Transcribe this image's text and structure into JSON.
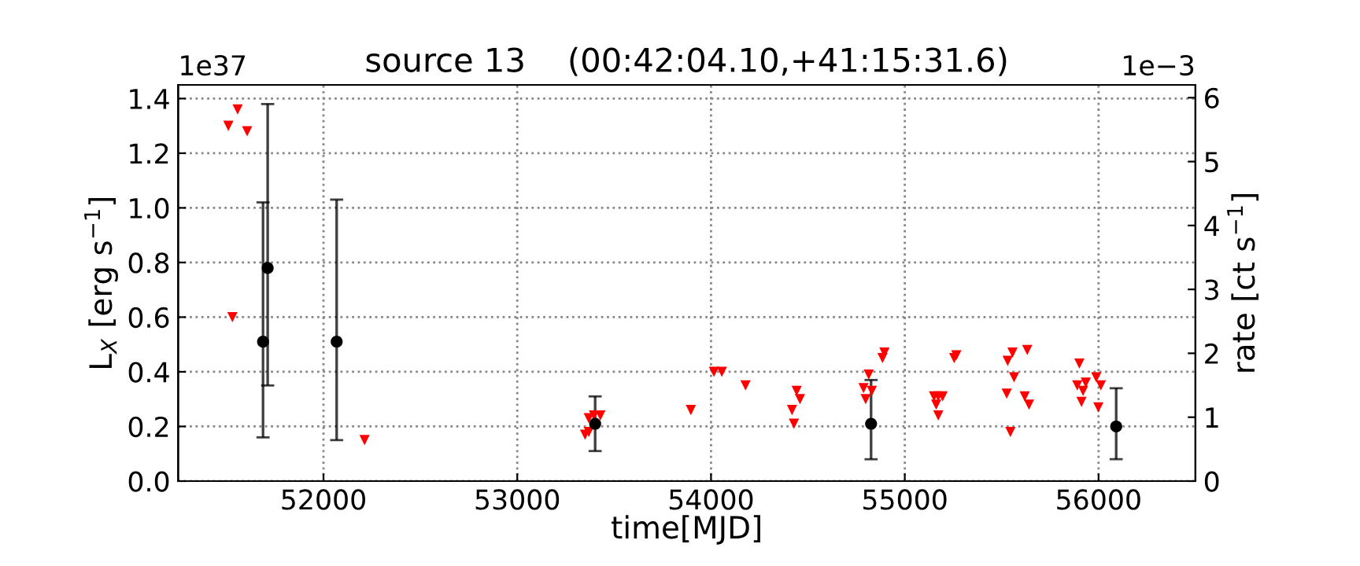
{
  "chart_data": {
    "type": "scatter",
    "title": "source 13    (00:42:04.10,+41:15:31.6)",
    "xlabel": "time[MJD]",
    "ylabel": "L$_{X}$ [erg s$^{−1}$]",
    "y2label": "rate [ct s$^{−1}$]",
    "annotations": [
      "1e37",
      "1e−3"
    ],
    "series": [
      {
        "color": "#ff0000",
        "marker": "triangle",
        "x": [
          51557,
          51509,
          51606,
          51530,
          52212,
          53350,
          53369,
          53369,
          53396,
          53429,
          53896,
          54015,
          54056,
          54178,
          54418,
          54428,
          54442,
          54459,
          54787,
          54798,
          54814,
          54830,
          54885,
          54895,
          55151,
          55173,
          55195,
          55162,
          55173,
          55255,
          55266,
          55526,
          55531,
          55545,
          55556,
          55564,
          55632,
          55619,
          55641,
          55901,
          55890,
          55912,
          55920,
          55934,
          55988,
          56012,
          55999
        ],
        "values": [
          1.36,
          1.3,
          1.28,
          0.6,
          0.15,
          0.17,
          0.18,
          0.23,
          0.24,
          0.24,
          0.26,
          0.4,
          0.4,
          0.35,
          0.26,
          0.21,
          0.33,
          0.3,
          0.34,
          0.3,
          0.39,
          0.33,
          0.45,
          0.47,
          0.31,
          0.31,
          0.31,
          0.28,
          0.24,
          0.45,
          0.46,
          0.32,
          0.44,
          0.18,
          0.47,
          0.38,
          0.48,
          0.31,
          0.28,
          0.43,
          0.35,
          0.29,
          0.33,
          0.36,
          0.38,
          0.35,
          0.27
        ]
      },
      {
        "color": "#000000",
        "marker": "circle",
        "x": [
          51688,
          51712,
          52068,
          53402,
          54826,
          56091
        ],
        "values": [
          0.51,
          0.78,
          0.51,
          0.21,
          0.21,
          0.2
        ],
        "errors": [
          [
            0.16,
            1.02
          ],
          [
            0.35,
            1.38
          ],
          [
            0.15,
            1.03
          ],
          [
            0.11,
            0.31
          ],
          [
            0.08,
            0.37
          ],
          [
            0.08,
            0.34
          ]
        ]
      }
    ],
    "xlim": [
      51250,
      56500
    ],
    "xticks": [
      52000,
      53000,
      54000,
      55000,
      56000
    ],
    "ylim": [
      0,
      1.45
    ],
    "yticks": [
      {
        "value": 0,
        "label": "0.0"
      },
      {
        "value": 0.2,
        "label": "0.2"
      },
      {
        "value": 0.4,
        "label": "0.4"
      },
      {
        "value": 0.6,
        "label": "0.6"
      },
      {
        "value": 0.8,
        "label": "0.8"
      },
      {
        "value": 1.0,
        "label": "1.0"
      },
      {
        "value": 1.2,
        "label": "1.2"
      },
      {
        "value": 1.4,
        "label": "1.4"
      }
    ],
    "y2lim": [
      0,
      6.2
    ],
    "y2ticks": [
      0,
      1,
      2,
      3,
      4,
      5,
      6
    ],
    "grid": true
  }
}
